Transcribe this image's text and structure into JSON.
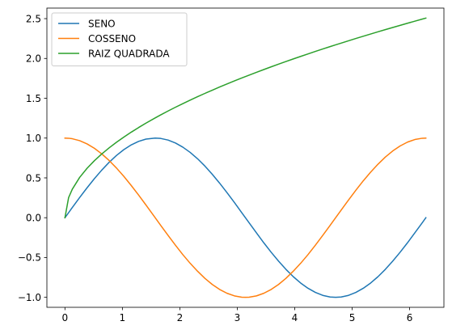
{
  "chart_data": {
    "type": "line",
    "title": "",
    "xlabel": "",
    "ylabel": "",
    "xlim": [
      -0.3142,
      6.5973
    ],
    "ylim": [
      -1.1253,
      2.6324
    ],
    "grid": false,
    "legend_position": "upper-left",
    "xticks": [
      0,
      1,
      2,
      3,
      4,
      5,
      6
    ],
    "xtick_labels": [
      "0",
      "1",
      "2",
      "3",
      "4",
      "5",
      "6"
    ],
    "yticks": [
      -1.0,
      -0.5,
      0.0,
      0.5,
      1.0,
      1.5,
      2.0,
      2.5
    ],
    "ytick_labels": [
      "−1.0",
      "−0.5",
      "0.0",
      "0.5",
      "1.0",
      "1.5",
      "2.0",
      "2.5"
    ],
    "x": [
      0,
      0.0641,
      0.1282,
      0.2565,
      0.3847,
      0.5129,
      0.6411,
      0.7694,
      0.8976,
      1.0258,
      1.154,
      1.2823,
      1.4105,
      1.5708,
      1.6669,
      1.7952,
      1.9234,
      2.0516,
      2.1798,
      2.3081,
      2.4363,
      2.5645,
      2.6927,
      2.821,
      2.9492,
      3.0774,
      3.1416,
      3.2056,
      3.3339,
      3.4621,
      3.5903,
      3.7185,
      3.8468,
      3.975,
      4.1032,
      4.2314,
      4.3597,
      4.4879,
      4.6161,
      4.7124,
      4.8085,
      4.9368,
      5.065,
      5.1932,
      5.3214,
      5.4497,
      5.5779,
      5.7061,
      5.8343,
      5.9626,
      6.0908,
      6.219,
      6.2832
    ],
    "series": [
      {
        "name": "SENO",
        "color": "#1f77b4",
        "values": [
          0,
          0.064,
          0.1279,
          0.2537,
          0.3753,
          0.4907,
          0.5981,
          0.6958,
          0.7818,
          0.8551,
          0.9145,
          0.9587,
          0.9872,
          1.0,
          0.9955,
          0.9751,
          0.9383,
          0.8862,
          0.8202,
          0.7407,
          0.6485,
          0.5452,
          0.4339,
          0.3152,
          0.1917,
          0.0641,
          0,
          -0.0639,
          -0.1909,
          -0.3155,
          -0.4339,
          -0.5452,
          -0.6485,
          -0.7407,
          -0.8202,
          -0.8862,
          -0.9383,
          -0.9751,
          -0.9955,
          -1.0,
          -0.9955,
          -0.9751,
          -0.9383,
          -0.8862,
          -0.8202,
          -0.7407,
          -0.6485,
          -0.5452,
          -0.4339,
          -0.3155,
          -0.1909,
          -0.0642,
          0
        ]
      },
      {
        "name": "COSSENO",
        "color": "#ff7f0e",
        "values": [
          1.0,
          0.9979,
          0.9918,
          0.9673,
          0.9269,
          0.8713,
          0.8014,
          0.7183,
          0.6235,
          0.5183,
          0.4046,
          0.2843,
          0.1594,
          0,
          -0.0958,
          -0.2224,
          -0.3454,
          -0.4632,
          -0.5723,
          -0.6718,
          -0.7616,
          -0.8383,
          -0.9011,
          -0.949,
          -0.9815,
          -0.9979,
          -1.0,
          -0.998,
          -0.9817,
          -0.9489,
          -0.901,
          -0.8383,
          -0.7616,
          -0.6718,
          -0.5723,
          -0.4632,
          -0.3454,
          -0.2224,
          -0.0958,
          0,
          0.0958,
          0.2224,
          0.3454,
          0.4632,
          0.5723,
          0.6718,
          0.7616,
          0.8383,
          0.901,
          0.9489,
          0.9817,
          0.9979,
          1.0
        ]
      },
      {
        "name": "RAIZ QUADRADA",
        "color": "#2ca02c",
        "values": [
          0,
          0.2532,
          0.3581,
          0.5065,
          0.6202,
          0.7162,
          0.8007,
          0.8772,
          0.9474,
          1.0128,
          1.0742,
          1.1324,
          1.1876,
          1.2533,
          1.2911,
          1.3399,
          1.3869,
          1.4323,
          1.4764,
          1.5192,
          1.5609,
          1.6014,
          1.641,
          1.6796,
          1.7173,
          1.7542,
          1.7725,
          1.7904,
          1.8259,
          1.8607,
          1.8948,
          1.9284,
          1.9613,
          1.9937,
          2.0256,
          2.057,
          2.088,
          2.1185,
          2.1485,
          2.1708,
          2.1928,
          2.2219,
          2.2506,
          2.2788,
          2.3068,
          2.3345,
          2.3618,
          2.3887,
          2.4154,
          2.4419,
          2.468,
          2.4938,
          2.5066
        ]
      }
    ]
  }
}
